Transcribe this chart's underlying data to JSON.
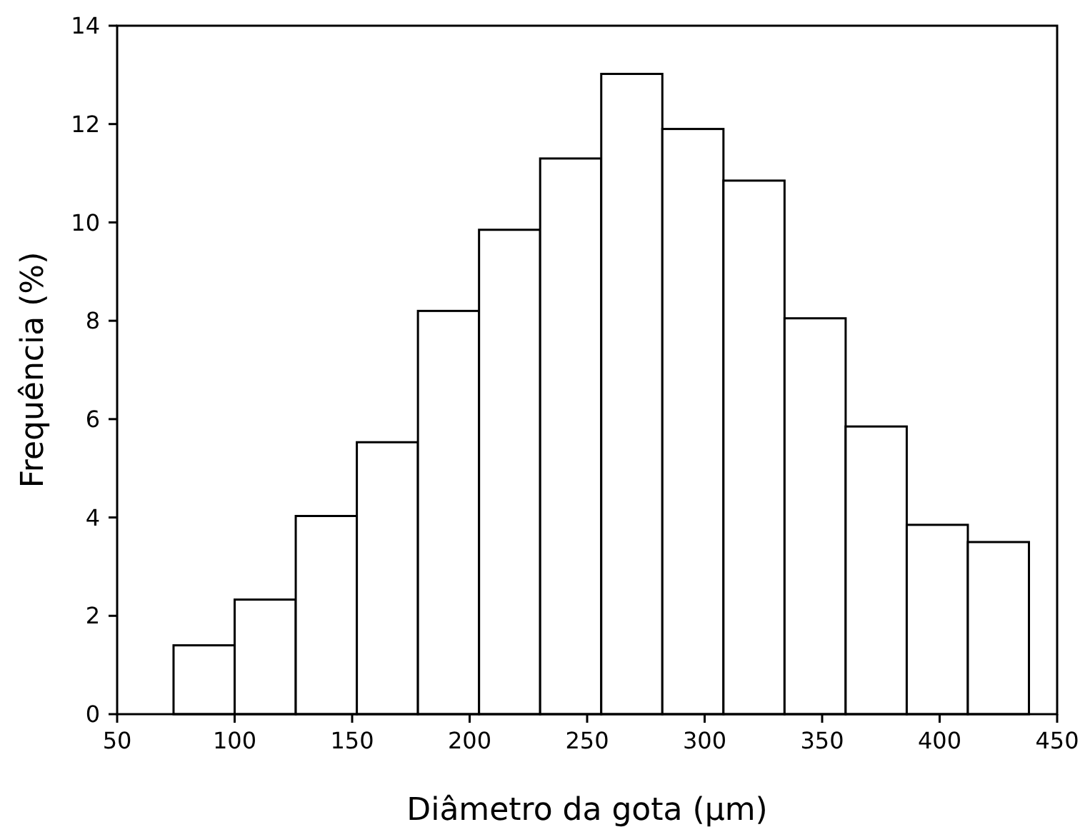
{
  "chart_data": {
    "type": "histogram",
    "xlabel": "Diâmetro da gota (µm)",
    "ylabel": "Frequência (%)",
    "bins": [
      74,
      100,
      126,
      152,
      178,
      204,
      230,
      256,
      282,
      308,
      334,
      360,
      386,
      412,
      438
    ],
    "values": [
      1.4,
      2.33,
      4.03,
      5.53,
      8.2,
      9.85,
      11.3,
      13.02,
      11.9,
      10.85,
      8.05,
      5.85,
      3.85,
      3.5
    ],
    "color": "#ffffff",
    "xlim": [
      50,
      450
    ],
    "xticks": [
      50,
      100,
      150,
      200,
      250,
      300,
      350,
      400,
      450
    ],
    "ylim": [
      0,
      14
    ],
    "yticks": [
      0,
      2,
      4,
      6,
      8,
      10,
      12,
      14
    ],
    "grid": false
  }
}
